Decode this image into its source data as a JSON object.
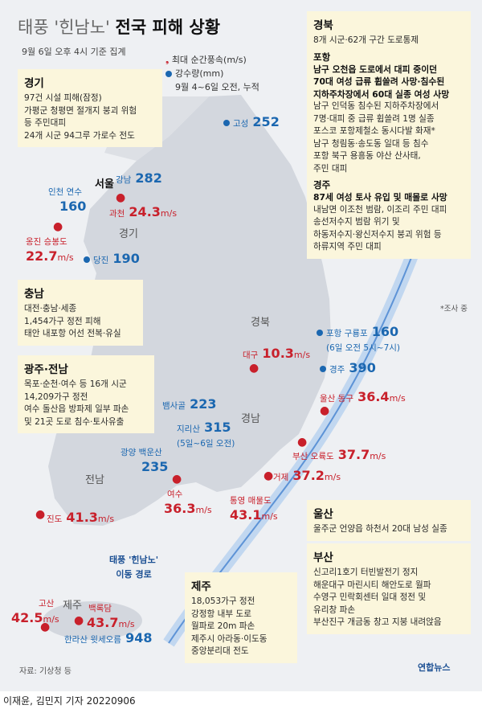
{
  "title": {
    "prefix": "태풍 '힌남노'",
    "main": "전국 피해 상황"
  },
  "subtitle": "9월 6일 오후 4시 기준 집계",
  "legend": {
    "wind": "최대 순간풍속(m/s)",
    "rain": "강수량(mm)",
    "rain_note": "9월 4~6일 오전, 누적"
  },
  "colors": {
    "wind": "#c8202b",
    "rain": "#1b67b0",
    "box_bg": "#fbf6dc",
    "land": "#d3d7de",
    "path": "#8fb3df"
  },
  "regions": {
    "seoul": "서울",
    "gyeonggi": "경기",
    "gyeongbuk": "경북",
    "gyeongnam": "경남",
    "jeonnam": "전남",
    "jeju": "제주"
  },
  "stations": {
    "goseong": {
      "name": "고성",
      "value": "252"
    },
    "gangnam": {
      "name": "강남",
      "value": "282"
    },
    "incheon": {
      "name": "인천 연수",
      "value": "160"
    },
    "gwacheon": {
      "name": "과천",
      "value": "24.3",
      "unit": "m/s"
    },
    "ongjin": {
      "name": "옹진 승봉도",
      "value": "22.7",
      "unit": "m/s"
    },
    "dangjin": {
      "name": "당진",
      "value": "190"
    },
    "pohang": {
      "name": "포항 구룡포",
      "value": "160",
      "note": "(6일 오전 5시~7시)"
    },
    "daegu": {
      "name": "대구",
      "value": "10.3",
      "unit": "m/s"
    },
    "gyeongju": {
      "name": "경주",
      "value": "390"
    },
    "ulsan": {
      "name": "울산 동구",
      "value": "36.4",
      "unit": "m/s"
    },
    "baeksagol": {
      "name": "뱀사골",
      "value": "223"
    },
    "jirisan": {
      "name": "지리산",
      "value": "315",
      "note": "(5일~6일 오전)"
    },
    "gwangyang": {
      "name": "광양 백운산",
      "value": "235"
    },
    "busan": {
      "name": "부산 오륙도",
      "value": "37.7",
      "unit": "m/s"
    },
    "geoje": {
      "name": "거제",
      "value": "37.2",
      "unit": "m/s"
    },
    "yeosu": {
      "name": "여수",
      "value": "36.3",
      "unit": "m/s"
    },
    "tongyeong": {
      "name": "통영 매물도",
      "value": "43.1",
      "unit": "m/s"
    },
    "jindo": {
      "name": "진도",
      "value": "41.3",
      "unit": "m/s"
    },
    "gosan": {
      "name": "고산",
      "value": "42.5",
      "unit": "m/s"
    },
    "baengnokdam": {
      "name": "백록담",
      "value": "43.7",
      "unit": "m/s"
    },
    "hallasan": {
      "name": "한라산 윗세오름",
      "value": "948"
    }
  },
  "typhoon_path": {
    "label": "태풍 '힌남노'",
    "label2": "이동 경로"
  },
  "boxes": {
    "gyeonggi": {
      "title": "경기",
      "lines": [
        "97건 시설 피해(잠정)",
        "가평군 청평면 절개지 붕괴 위험",
        "등 주민대피",
        "24개 시군 94그루 가로수 전도"
      ]
    },
    "chungnam": {
      "title": "충남",
      "lines": [
        "대전·충남·세종",
        "1,454가구 정전 피해",
        "태안 내포항 어선 전복·유실"
      ]
    },
    "gwangju": {
      "title": "광주·전남",
      "lines": [
        "목포·순천·여수 등 16개 시군",
        "14,209가구 정전",
        "여수 돌산읍 방파제 일부 파손",
        "및 21곳 도로 침수·토사유출"
      ]
    },
    "gyeongbuk": {
      "title": "경북",
      "intro": "8개 시군·62개 구간 도로통제",
      "pohang_title": "포항",
      "pohang_bold": [
        "남구 오천읍 도로에서 대피 중이던",
        "70대 여성 급류 휩쓸려 사망·침수된",
        "지하주차장에서 60대 실종 여성 사망"
      ],
      "pohang_lines": [
        "남구 인덕동 침수된 지하주차장에서",
        "7명·대피 중 급류 휩쓸려 1명 실종",
        "포스코 포항제철소 동시다발 화재*",
        "남구 청림동·송도동 일대 등 침수",
        "포항 북구 용흥동 야산 산사태,",
        "주민 대피"
      ],
      "gyeongju_title": "경주",
      "gyeongju_bold": "87세 여성 토사 유입 및 매몰로 사망",
      "gyeongju_lines": [
        "내남면 이조천 범람, 이조리 주민 대피",
        "송선저수지 범람 위기 및",
        "하동저수지·왕신저수지 붕괴 위험 등",
        "하류지역 주민 대피"
      ]
    },
    "ulsan": {
      "title": "울산",
      "lines": [
        "울주군 언양읍 하천서 20대 남성 실종"
      ]
    },
    "busan": {
      "title": "부산",
      "lines": [
        "신고리1호기 터빈발전기 정지",
        "해운대구 마린시티 해안도로 월파",
        "수영구 민락회센터 일대 정전 및",
        "유리창 파손",
        "부산진구 개금동 창고 지붕 내려앉음"
      ]
    },
    "jeju": {
      "title": "제주",
      "lines": [
        "18,053가구 정전",
        "강정항 내부 도로",
        "월파로 20m 파손",
        "제주시 아라동·이도동",
        "중앙분리대 전도"
      ]
    }
  },
  "survey_note": "*조사 중",
  "source": "자료: 기상청 등",
  "credit": "이재윤, 김민지 기자  20220906",
  "logo": "연합뉴스"
}
